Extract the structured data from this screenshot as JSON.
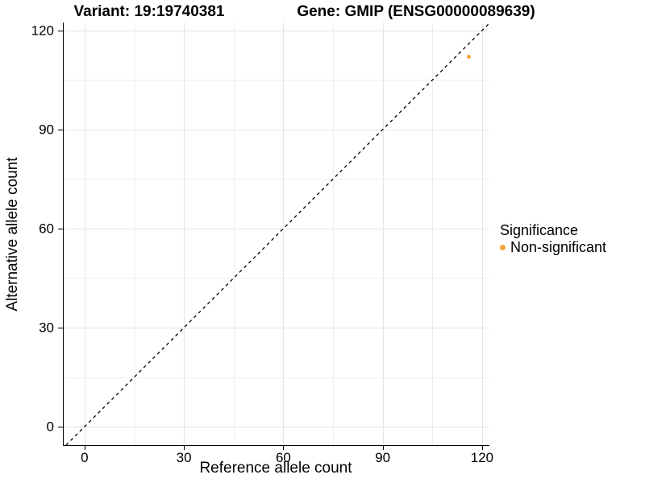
{
  "titles": {
    "variant": "Variant: 19:19740381",
    "gene": "Gene: GMIP (ENSG00000089639)"
  },
  "legend": {
    "title": "Significance",
    "items": [
      {
        "label": "Non-significant",
        "color": "#F9A33C"
      }
    ]
  },
  "colors": {
    "grid_major": "#e4e4e4",
    "grid_minor": "#eeeeee",
    "axis_line": "#000000",
    "point": "#F9A33C",
    "reference_line": "#000000"
  },
  "chart_data": {
    "type": "scatter",
    "title": "Variant: 19:19740381 / Gene: GMIP (ENSG00000089639)",
    "xlabel": "Reference allele count",
    "ylabel": "Alternative allele count",
    "xlim": [
      -6.3,
      122.2
    ],
    "ylim": [
      -5.6,
      122.4
    ],
    "x_ticks": [
      0,
      30,
      60,
      90,
      120
    ],
    "y_ticks": [
      0,
      30,
      60,
      90,
      120
    ],
    "x_minor_ticks": [
      15,
      45,
      75,
      105
    ],
    "y_minor_ticks": [
      15,
      45,
      75,
      105
    ],
    "grid": "major and minor gridlines, light gray on white",
    "legend_position": "right",
    "series": [
      {
        "name": "Non-significant",
        "color": "#F9A33C",
        "points": [
          {
            "x": 116,
            "y": 112
          }
        ]
      }
    ],
    "reference_line": {
      "slope": 1,
      "intercept": 0,
      "style": "dashed",
      "color": "#000000"
    }
  }
}
